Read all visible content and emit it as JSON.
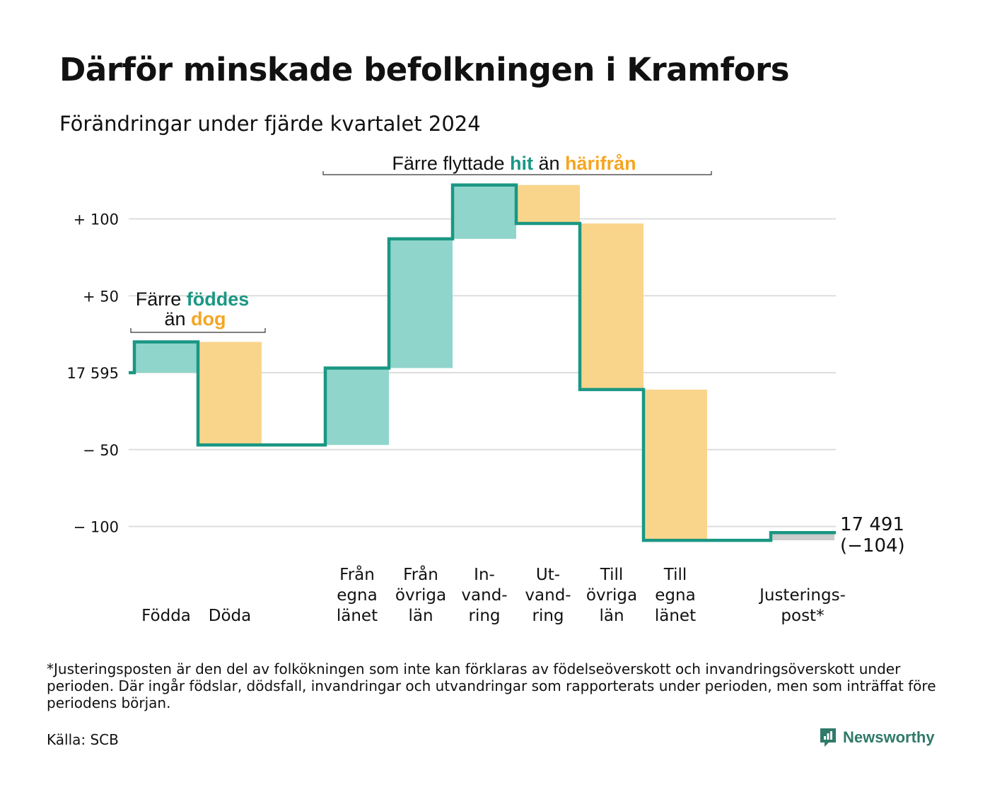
{
  "title": "Därför minskade befolkningen i Kramfors",
  "subtitle": "Förändringar under fjärde kvartalet 2024",
  "chart_data": {
    "type": "waterfall",
    "start_label": "17 595",
    "start_value": 17595,
    "end_label": "17 491",
    "end_change_label": "(−104)",
    "ylim": [
      -110,
      122
    ],
    "y_ticks": [
      {
        "value": 100,
        "label": "+ 100"
      },
      {
        "value": 50,
        "label": "+  50"
      },
      {
        "value": 0,
        "label": "17 595"
      },
      {
        "value": -50,
        "label": "−  50"
      },
      {
        "value": -100,
        "label": "− 100"
      }
    ],
    "grid": true,
    "steps": [
      {
        "label_lines": [
          "Födda"
        ],
        "change": 20,
        "type": "plus"
      },
      {
        "label_lines": [
          "Döda"
        ],
        "change": -67,
        "type": "minus"
      },
      {
        "label_lines": [
          "Från",
          "egna",
          "länet"
        ],
        "change": 50,
        "type": "plus"
      },
      {
        "label_lines": [
          "Från",
          "övriga",
          "län"
        ],
        "change": 84,
        "type": "plus"
      },
      {
        "label_lines": [
          "In-",
          "vand-",
          "ring"
        ],
        "change": 35,
        "type": "plus"
      },
      {
        "label_lines": [
          "Ut-",
          "vand-",
          "ring"
        ],
        "change": -25,
        "type": "minus"
      },
      {
        "label_lines": [
          "Till",
          "övriga",
          "län"
        ],
        "change": -108,
        "type": "minus"
      },
      {
        "label_lines": [
          "Till",
          "egna",
          "länet"
        ],
        "change": -98,
        "type": "minus"
      },
      {
        "label_lines": [
          "Justerings-",
          "post*"
        ],
        "change": 5,
        "type": "adjust"
      }
    ],
    "annotations": [
      {
        "parts": [
          {
            "text": "Färre ",
            "type": "plain"
          },
          {
            "text": "föddes",
            "type": "plus"
          }
        ],
        "parts2": [
          {
            "text": "än ",
            "type": "plain"
          },
          {
            "text": "dog",
            "type": "minus"
          }
        ]
      },
      {
        "parts": [
          {
            "text": "Färre flyttade ",
            "type": "plain"
          },
          {
            "text": "hit",
            "type": "plus"
          },
          {
            "text": " än ",
            "type": "plain"
          },
          {
            "text": "härifrån",
            "type": "minus"
          }
        ]
      }
    ],
    "colors": {
      "plus_fill": "#8fd5cb",
      "minus_fill": "#f9d58c",
      "adjust_fill": "#cccccc",
      "line": "#1a9783",
      "plus_text": "#1a9783",
      "minus_text": "#f5a623",
      "grid": "#dddddd"
    }
  },
  "footnote": "*Justeringsposten är den del av folkökningen som inte kan förklaras av födelseöverskott och invandringsöverskott under perioden. Där ingår födslar, dödsfall, invandringar och utvandringar som rapporterats under perioden, men som inträffat före periodens början.",
  "source": "Källa: SCB",
  "brand": {
    "name": "Newsworthy",
    "icon": "newsworthy-logo-icon"
  }
}
